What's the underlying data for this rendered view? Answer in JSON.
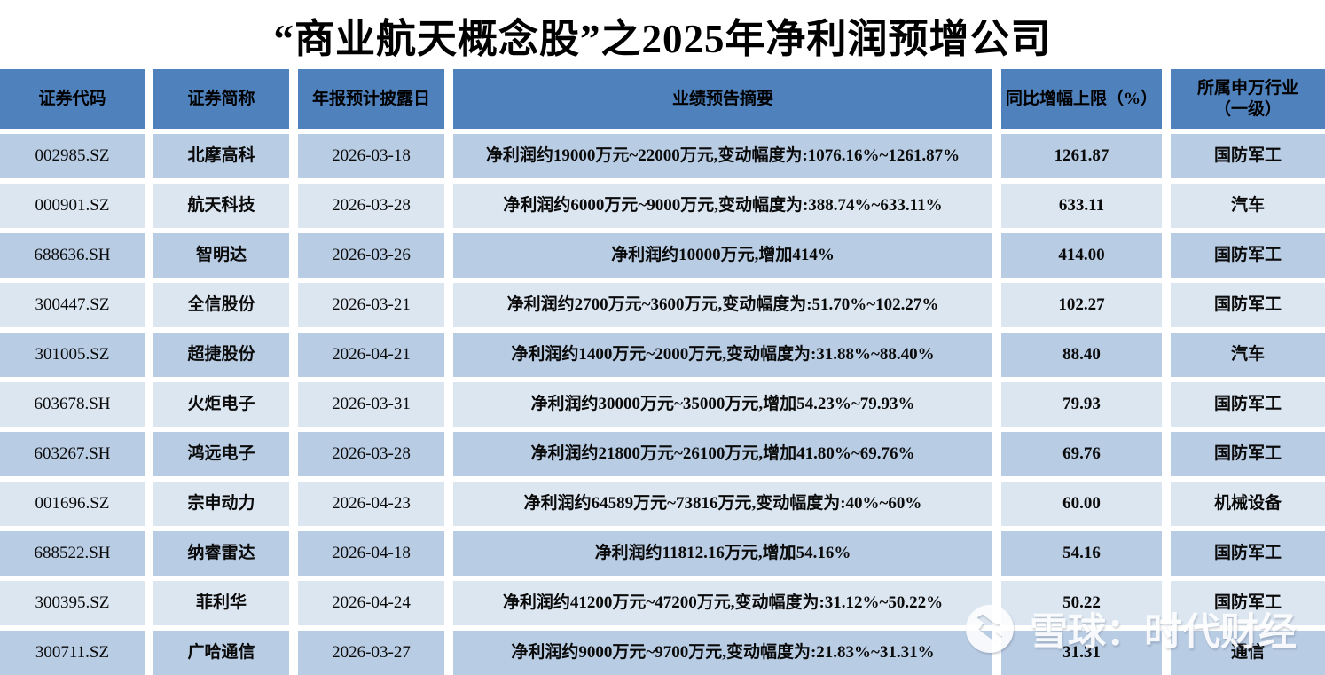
{
  "chart_data": {
    "type": "table",
    "title": "“商业航天概念股”之2025年净利润预增公司",
    "columns": [
      "证券代码",
      "证券简称",
      "年报预计披露日",
      "业绩预告摘要",
      "同比增幅上限（%）",
      "所属申万行业（一级）"
    ],
    "rows": [
      [
        "002985.SZ",
        "北摩高科",
        "2026-03-18",
        "净利润约19000万元~22000万元,变动幅度为:1076.16%~1261.87%",
        "1261.87",
        "国防军工"
      ],
      [
        "000901.SZ",
        "航天科技",
        "2026-03-28",
        "净利润约6000万元~9000万元,变动幅度为:388.74%~633.11%",
        "633.11",
        "汽车"
      ],
      [
        "688636.SH",
        "智明达",
        "2026-03-26",
        "净利润约10000万元,增加414%",
        "414.00",
        "国防军工"
      ],
      [
        "300447.SZ",
        "全信股份",
        "2026-03-21",
        "净利润约2700万元~3600万元,变动幅度为:51.70%~102.27%",
        "102.27",
        "国防军工"
      ],
      [
        "301005.SZ",
        "超捷股份",
        "2026-04-21",
        "净利润约1400万元~2000万元,变动幅度为:31.88%~88.40%",
        "88.40",
        "汽车"
      ],
      [
        "603678.SH",
        "火炬电子",
        "2026-03-31",
        "净利润约30000万元~35000万元,增加54.23%~79.93%",
        "79.93",
        "国防军工"
      ],
      [
        "603267.SH",
        "鸿远电子",
        "2026-03-28",
        "净利润约21800万元~26100万元,增加41.80%~69.76%",
        "69.76",
        "国防军工"
      ],
      [
        "001696.SZ",
        "宗申动力",
        "2026-04-23",
        "净利润约64589万元~73816万元,变动幅度为:40%~60%",
        "60.00",
        "机械设备"
      ],
      [
        "688522.SH",
        "纳睿雷达",
        "2026-04-18",
        "净利润约11812.16万元,增加54.16%",
        "54.16",
        "国防军工"
      ],
      [
        "300395.SZ",
        "菲利华",
        "2026-04-24",
        "净利润约41200万元~47200万元,变动幅度为:31.12%~50.22%",
        "50.22",
        "国防军工"
      ],
      [
        "300711.SZ",
        "广哈通信",
        "2026-03-27",
        "净利润约9000万元~9700万元,变动幅度为:21.83%~31.31%",
        "31.31",
        "通信"
      ]
    ],
    "layout_hints": {
      "grid": "on",
      "alternating_row_colors": true,
      "header_position": "top"
    }
  },
  "watermark": {
    "logo_icon": "xueqiu-logo",
    "label": "雪球：时代财经"
  },
  "colors": {
    "header_bg": "#4f81bd",
    "row_odd": "#b8cce4",
    "row_even": "#dce6f1",
    "border": "#ffffff",
    "text": "#0a0a0a",
    "watermark": "#ffffff"
  }
}
